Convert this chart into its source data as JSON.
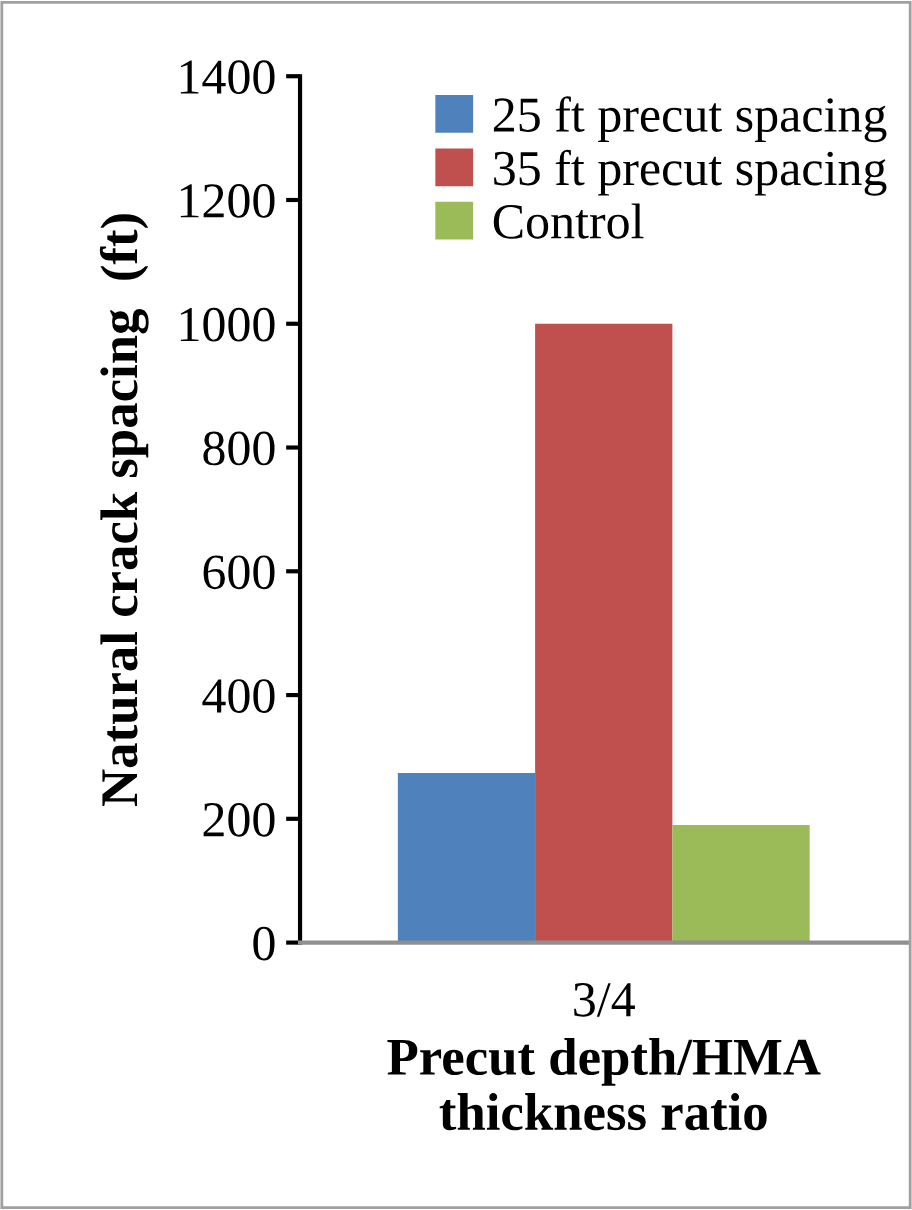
{
  "chart_data": {
    "type": "bar",
    "xlabel": "Precut depth/HMA thickness ratio",
    "ylabel": "Natural crack spacing  (ft)",
    "categories": [
      "3/4"
    ],
    "series": [
      {
        "name": "25 ft precut spacing",
        "color": "#4f81bd",
        "values": [
          274
        ]
      },
      {
        "name": "35 ft precut spacing",
        "color": "#c0504d",
        "values": [
          1000
        ]
      },
      {
        "name": "Control",
        "color": "#9bbb59",
        "values": [
          190
        ]
      }
    ],
    "ylim": [
      0,
      1400
    ],
    "yticks": [
      0,
      200,
      400,
      600,
      800,
      1000,
      1200,
      1400
    ],
    "grid": false,
    "legend": "top right"
  }
}
